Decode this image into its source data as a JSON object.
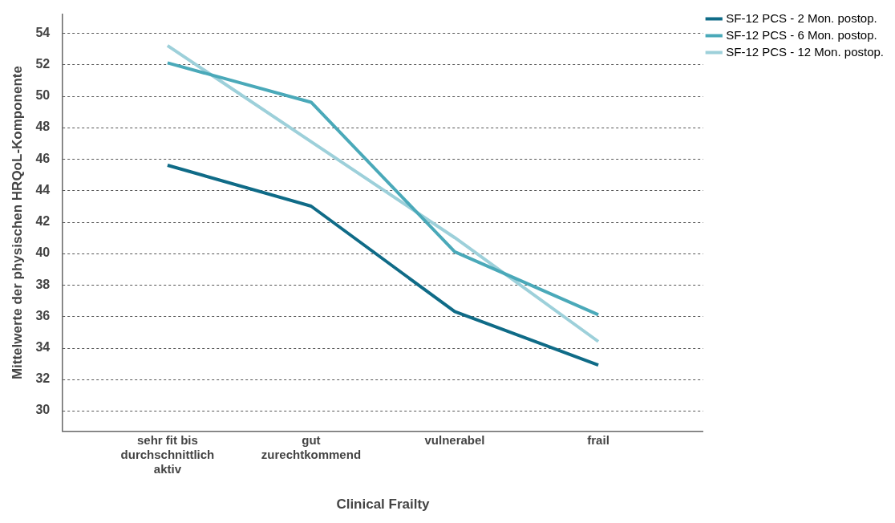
{
  "chart_data": {
    "type": "line",
    "xlabel": "Clinical Frailty",
    "ylabel": "Mittelwerte der physischen HRQoL-Komponente",
    "categories": [
      "sehr fit bis durchschnittlich aktiv",
      "gut zurechtkommend",
      "vulnerabel",
      "frail"
    ],
    "series": [
      {
        "name": "SF-12 PCS - 2 Mon. postop.",
        "color": "#0f6b87",
        "values": [
          45.6,
          43.0,
          36.3,
          32.9
        ]
      },
      {
        "name": "SF-12 PCS - 6 Mon. postop.",
        "color": "#4aa9b9",
        "values": [
          52.1,
          49.6,
          40.1,
          36.1
        ]
      },
      {
        "name": "SF-12 PCS - 12 Mon. postop.",
        "color": "#9dd0da",
        "values": [
          53.2,
          47.1,
          41.0,
          34.4
        ]
      }
    ],
    "ylim": [
      28.7,
      55.2
    ],
    "yticks": [
      30,
      32,
      34,
      36,
      38,
      40,
      42,
      44,
      46,
      48,
      50,
      52,
      54
    ],
    "grid": "y",
    "legend": "top right",
    "marker": "none",
    "line_style": "solid"
  }
}
